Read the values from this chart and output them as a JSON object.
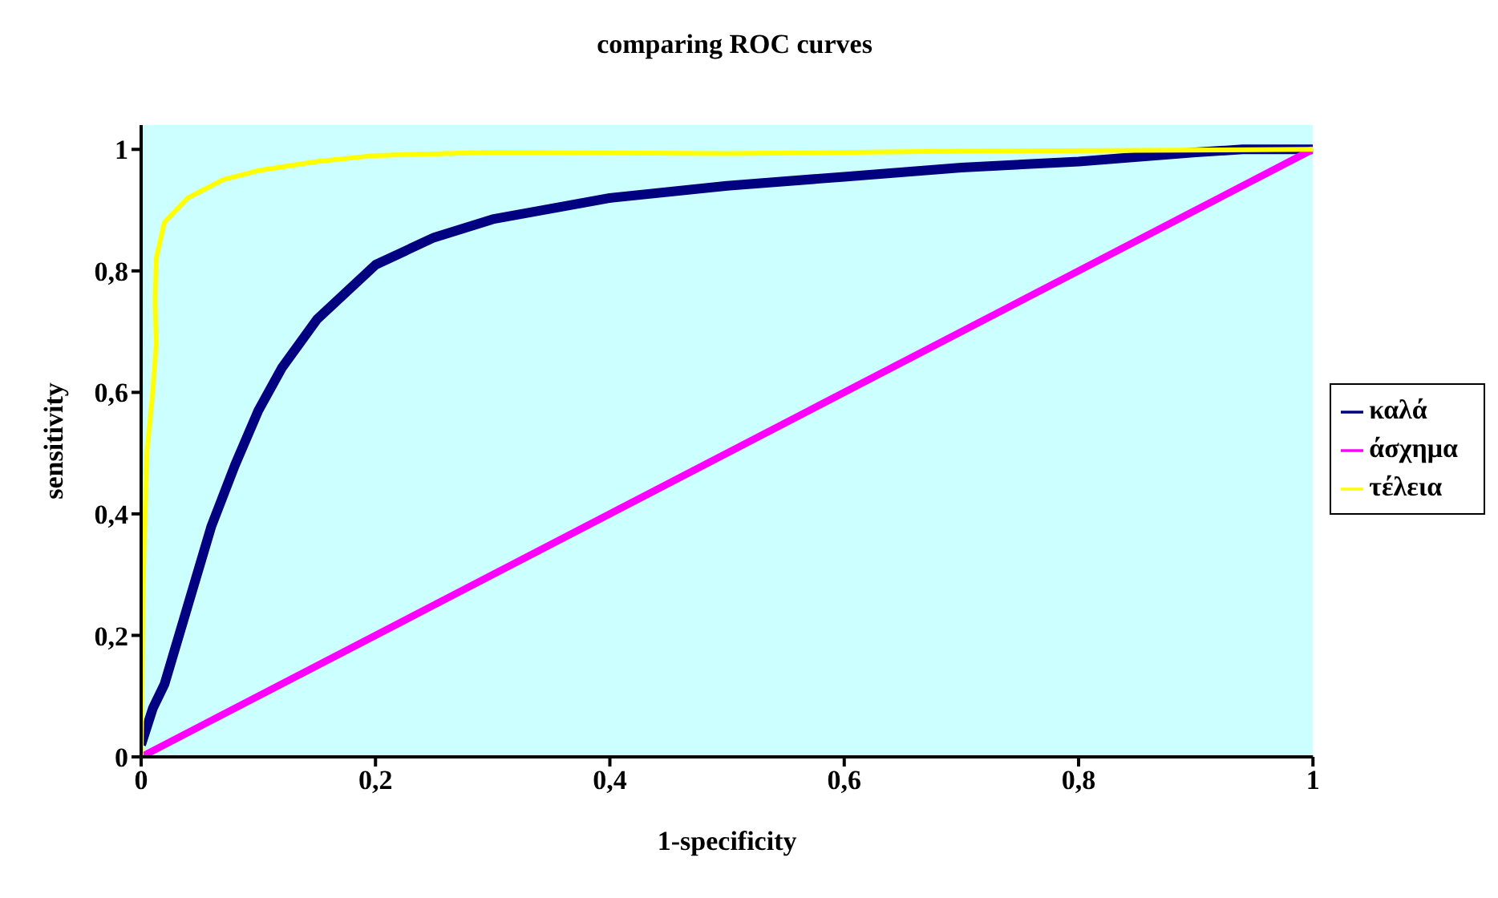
{
  "chart_data": {
    "type": "line",
    "title": "comparing ROC curves",
    "xlabel": "1-specificity",
    "ylabel": "sensitivity",
    "xlim": [
      0,
      1
    ],
    "ylim": [
      0,
      1.04
    ],
    "xticks": [
      0,
      {
        "value": 0.2,
        "label": "0,2"
      },
      {
        "value": 0.4,
        "label": "0,4"
      },
      {
        "value": 0.6,
        "label": "0,6"
      },
      {
        "value": 0.8,
        "label": "0,8"
      },
      1
    ],
    "yticks": [
      0,
      {
        "value": 0.2,
        "label": "0,2"
      },
      {
        "value": 0.4,
        "label": "0,4"
      },
      {
        "value": 0.6,
        "label": "0,6"
      },
      {
        "value": 0.8,
        "label": "0,8"
      },
      1
    ],
    "grid": false,
    "legend": "right",
    "marker": "none",
    "line_style": "solid",
    "series": [
      {
        "name": "καλά",
        "color": "#000080",
        "x": [
          0,
          0.01,
          0.02,
          0.04,
          0.06,
          0.08,
          0.1,
          0.12,
          0.15,
          0.2,
          0.25,
          0.3,
          0.4,
          0.5,
          0.6,
          0.7,
          0.8,
          0.9,
          0.94,
          1
        ],
        "values": [
          0.02,
          0.08,
          0.12,
          0.25,
          0.38,
          0.48,
          0.57,
          0.64,
          0.72,
          0.81,
          0.855,
          0.885,
          0.92,
          0.94,
          0.955,
          0.97,
          0.98,
          0.995,
          1,
          1
        ]
      },
      {
        "name": "άσχημα",
        "color": "#ff00ff",
        "x": [
          0,
          1
        ],
        "values": [
          0,
          1
        ]
      },
      {
        "name": "τέλεια",
        "color": "#ffff00",
        "x": [
          0,
          0.002,
          0.005,
          0.01,
          0.013,
          0.012,
          0.013,
          0.02,
          0.04,
          0.07,
          0.1,
          0.15,
          0.2,
          0.3,
          0.5,
          0.7,
          1
        ],
        "values": [
          0,
          0.3,
          0.5,
          0.6,
          0.68,
          0.75,
          0.82,
          0.88,
          0.92,
          0.95,
          0.965,
          0.98,
          0.99,
          0.995,
          0.993,
          0.997,
          1
        ]
      }
    ]
  }
}
